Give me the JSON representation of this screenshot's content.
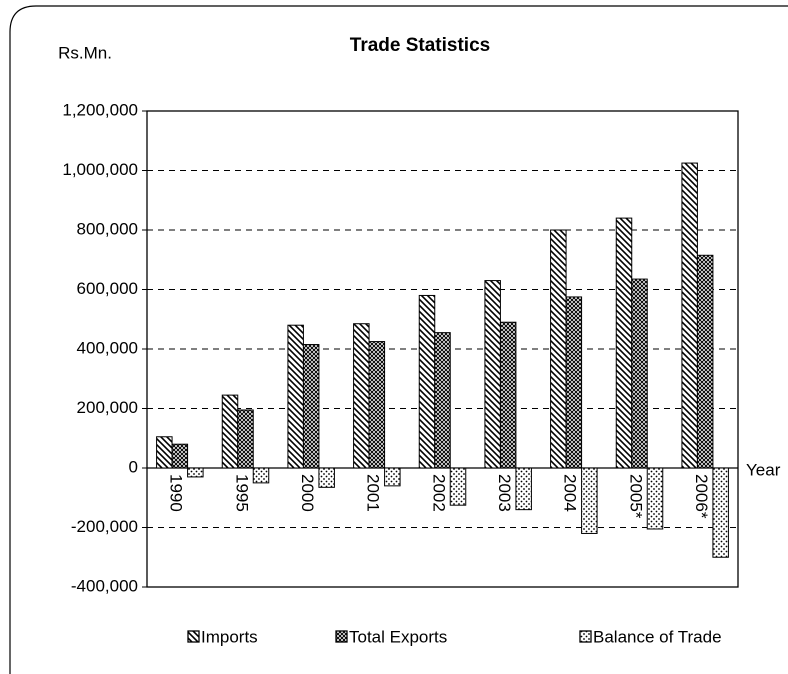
{
  "chart_data": {
    "type": "bar",
    "title": "Trade Statistics",
    "y_label": "Rs.Mn.",
    "x_label": "Year",
    "categories": [
      "1990",
      "1995",
      "2000",
      "2001",
      "2002",
      "2003",
      "2004",
      "2005*",
      "2006*"
    ],
    "series": [
      {
        "name": "Imports",
        "pattern": "hatch",
        "color": "#000000",
        "values": [
          105000,
          245000,
          480000,
          485000,
          580000,
          630000,
          800000,
          840000,
          1025000
        ]
      },
      {
        "name": "Total Exports",
        "pattern": "cross",
        "color": "#000000",
        "values": [
          80000,
          195000,
          415000,
          425000,
          455000,
          490000,
          575000,
          635000,
          715000
        ]
      },
      {
        "name": "Balance of Trade",
        "pattern": "dots",
        "color": "#000000",
        "values": [
          -30000,
          -50000,
          -65000,
          -60000,
          -125000,
          -140000,
          -220000,
          -205000,
          -300000
        ]
      }
    ],
    "ylim": [
      -400000,
      1200000
    ],
    "yticks": [
      {
        "value": -400000,
        "label": "-400,000"
      },
      {
        "value": -200000,
        "label": "-200,000"
      },
      0,
      {
        "value": 200000,
        "label": "200,000"
      },
      {
        "value": 400000,
        "label": "400,000"
      },
      {
        "value": 600000,
        "label": "600,000"
      },
      {
        "value": 800000,
        "label": "800,000"
      },
      {
        "value": 1000000,
        "label": "1,000,000"
      },
      {
        "value": 1200000,
        "label": "1,200,000"
      }
    ],
    "grid": true,
    "legend": "bottom"
  }
}
